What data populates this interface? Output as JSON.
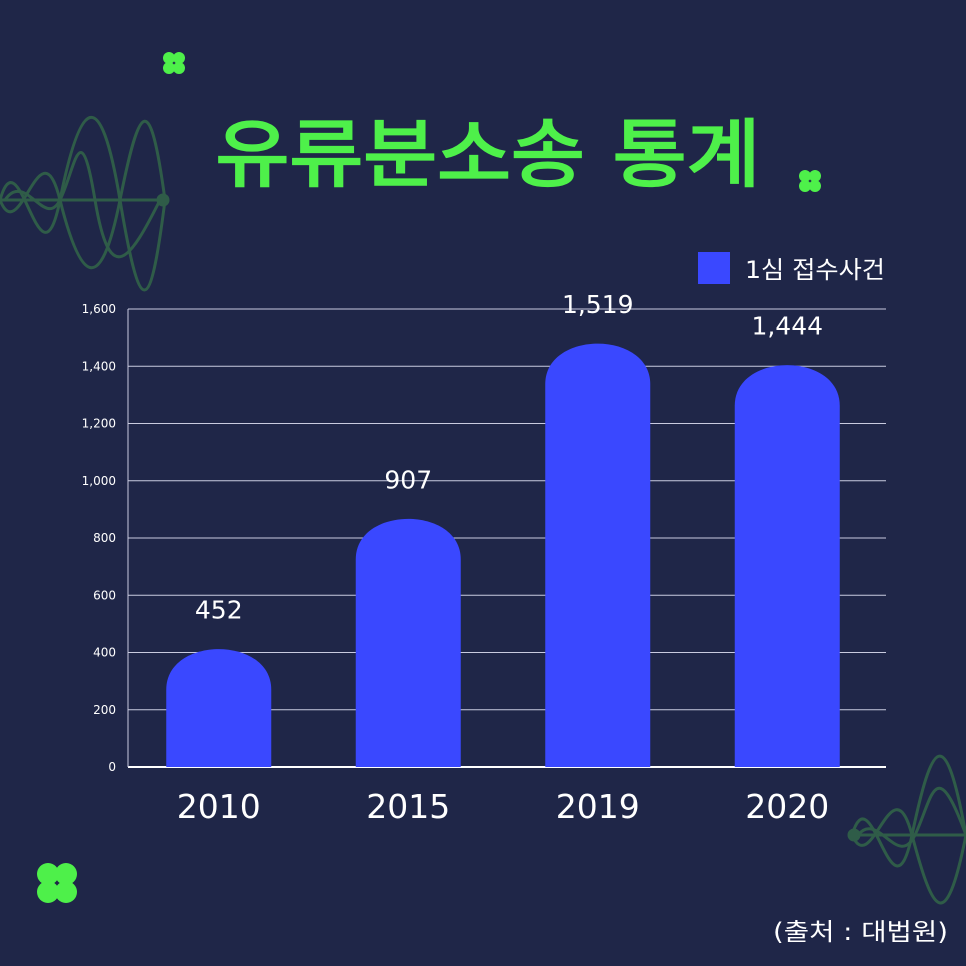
{
  "colors": {
    "background": "#1f2648",
    "title": "#4ef04a",
    "bar": "#3a48ff",
    "grid": "#c9cbe0",
    "decor_wave": "#2f5c48",
    "decor_clover": "#4ef04a"
  },
  "decorations": [
    "clover-icon",
    "clover-icon",
    "clover-icon",
    "wave-decoration",
    "wave-decoration"
  ],
  "footer": {
    "source": "(출처 : 대법원)"
  },
  "chart_data": {
    "type": "bar",
    "title": "유류분소송 통계",
    "categories": [
      "2010",
      "2015",
      "2019",
      "2020"
    ],
    "series": [
      {
        "name": "1심 접수사건",
        "values": [
          452,
          907,
          1519,
          1444
        ],
        "labels": [
          "452",
          "907",
          "1,519",
          "1,444"
        ]
      }
    ],
    "ylim": [
      0,
      1600
    ],
    "yticks": [
      0,
      200,
      400,
      600,
      800,
      1000,
      1200,
      1400,
      1600
    ],
    "ytick_labels": [
      "0",
      "200",
      "400",
      "600",
      "800",
      "1,000",
      "1,200",
      "1,400",
      "1,600"
    ],
    "grid": true,
    "legend_position": "top-right"
  }
}
